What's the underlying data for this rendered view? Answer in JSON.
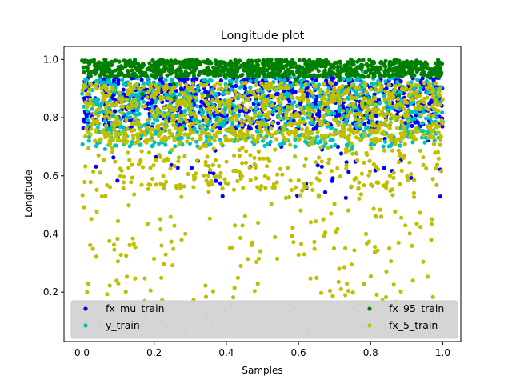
{
  "chart_data": {
    "type": "scatter",
    "title": "Longitude plot",
    "xlabel": "Samples",
    "ylabel": "Longitude",
    "xlim": [
      -0.05,
      1.05
    ],
    "ylim": [
      0.03,
      1.045
    ],
    "xticks": [
      0.0,
      0.2,
      0.4,
      0.6,
      0.8,
      1.0
    ],
    "xtick_labels": [
      "0.0",
      "0.2",
      "0.4",
      "0.6",
      "0.8",
      "1.0"
    ],
    "yticks": [
      0.2,
      0.4,
      0.6,
      0.8,
      1.0
    ],
    "ytick_labels": [
      "0.2",
      "0.4",
      "0.6",
      "0.8",
      "1.0"
    ],
    "grid": false,
    "legend_position": "lower center",
    "series": [
      {
        "name": "fx_mu_train",
        "color": "#0000ff",
        "approx_range": [
          0.52,
          0.96
        ],
        "bulk_range": [
          0.76,
          0.94
        ]
      },
      {
        "name": "y_train",
        "color": "#00bfbf",
        "approx_range": [
          0.68,
          0.96
        ],
        "bulk_range": [
          0.7,
          0.94
        ]
      },
      {
        "name": "fx_95_train",
        "color": "#008000",
        "approx_range": [
          0.84,
          1.0
        ],
        "bulk_range": [
          0.94,
          1.0
        ]
      },
      {
        "name": "fx_5_train",
        "color": "#bfbf00",
        "approx_range": [
          0.05,
          0.96
        ],
        "bulk_range": [
          0.72,
          0.92
        ]
      }
    ]
  }
}
